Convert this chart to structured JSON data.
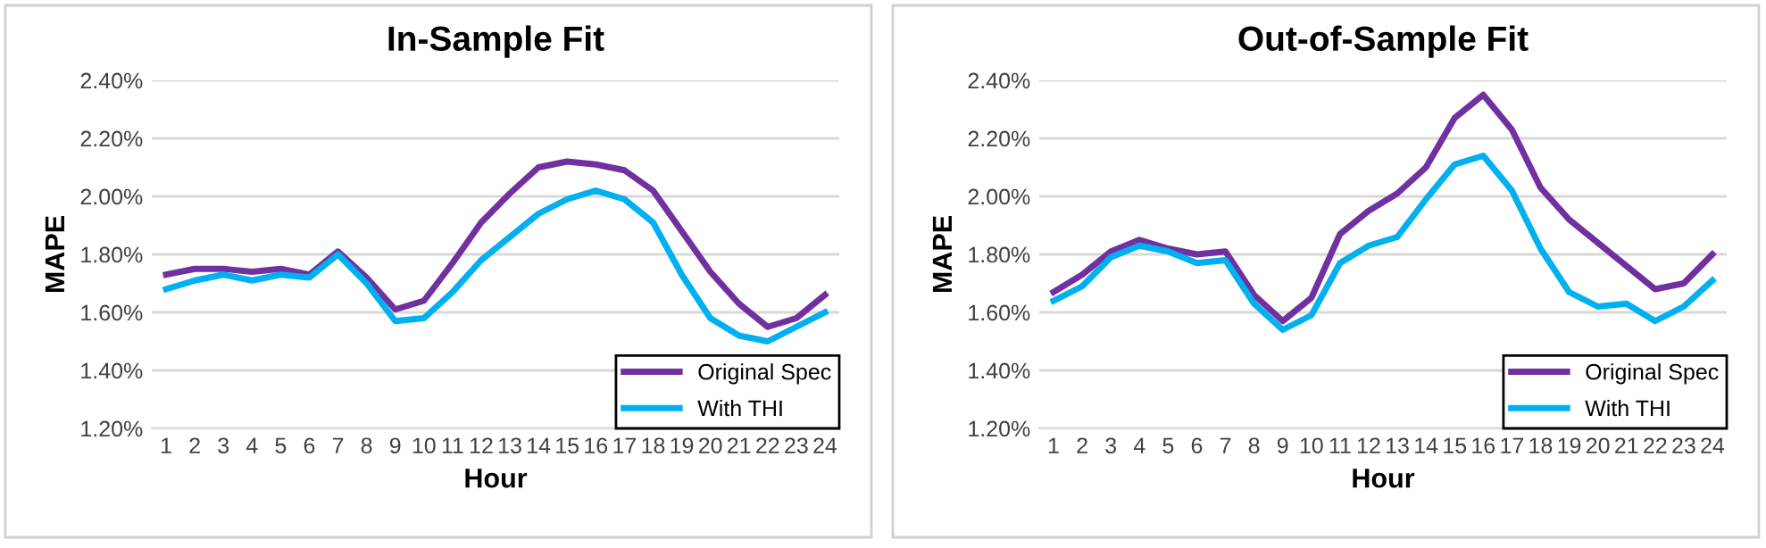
{
  "chart_data": [
    {
      "type": "line",
      "title": "In-Sample Fit",
      "xlabel": "Hour",
      "ylabel": "MAPE",
      "categories": [
        "1",
        "2",
        "3",
        "4",
        "5",
        "6",
        "7",
        "8",
        "9",
        "10",
        "11",
        "12",
        "13",
        "14",
        "15",
        "16",
        "17",
        "18",
        "19",
        "20",
        "21",
        "22",
        "23",
        "24"
      ],
      "series": [
        {
          "name": "Original Spec",
          "color": "#7030a0",
          "values": [
            1.73,
            1.75,
            1.75,
            1.74,
            1.75,
            1.73,
            1.81,
            1.72,
            1.61,
            1.64,
            1.77,
            1.91,
            2.01,
            2.1,
            2.12,
            2.11,
            2.09,
            2.02,
            1.88,
            1.74,
            1.63,
            1.55,
            1.58,
            1.66
          ]
        },
        {
          "name": "With THI",
          "color": "#00b0f0",
          "values": [
            1.68,
            1.71,
            1.73,
            1.71,
            1.73,
            1.72,
            1.8,
            1.7,
            1.57,
            1.58,
            1.67,
            1.78,
            1.86,
            1.94,
            1.99,
            2.02,
            1.99,
            1.91,
            1.73,
            1.58,
            1.52,
            1.5,
            1.55,
            1.6
          ]
        }
      ],
      "ylim": [
        1.2,
        2.4
      ],
      "yticks": [
        {
          "value": 1.2,
          "label": "1.20%"
        },
        {
          "value": 1.4,
          "label": "1.40%"
        },
        {
          "value": 1.6,
          "label": "1.60%"
        },
        {
          "value": 1.8,
          "label": "1.80%"
        },
        {
          "value": 2.0,
          "label": "2.00%"
        },
        {
          "value": 2.2,
          "label": "2.20%"
        },
        {
          "value": 2.4,
          "label": "2.40%"
        }
      ],
      "grid": "y",
      "legend": "bottom right",
      "line_style": "solid"
    },
    {
      "type": "line",
      "title": "Out-of-Sample Fit",
      "xlabel": "Hour",
      "ylabel": "MAPE",
      "categories": [
        "1",
        "2",
        "3",
        "4",
        "5",
        "6",
        "7",
        "8",
        "9",
        "10",
        "11",
        "12",
        "13",
        "14",
        "15",
        "16",
        "17",
        "18",
        "19",
        "20",
        "21",
        "22",
        "23",
        "24"
      ],
      "series": [
        {
          "name": "Original Spec",
          "color": "#7030a0",
          "values": [
            1.67,
            1.73,
            1.81,
            1.85,
            1.82,
            1.8,
            1.81,
            1.66,
            1.57,
            1.65,
            1.87,
            1.95,
            2.01,
            2.1,
            2.27,
            2.35,
            2.23,
            2.03,
            1.92,
            1.84,
            1.76,
            1.68,
            1.7,
            1.8
          ]
        },
        {
          "name": "With THI",
          "color": "#00b0f0",
          "values": [
            1.64,
            1.69,
            1.79,
            1.83,
            1.81,
            1.77,
            1.78,
            1.63,
            1.54,
            1.59,
            1.77,
            1.83,
            1.86,
            1.99,
            2.11,
            2.14,
            2.02,
            1.82,
            1.67,
            1.62,
            1.63,
            1.57,
            1.62,
            1.71
          ]
        }
      ],
      "ylim": [
        1.2,
        2.4
      ],
      "yticks": [
        {
          "value": 1.2,
          "label": "1.20%"
        },
        {
          "value": 1.4,
          "label": "1.40%"
        },
        {
          "value": 1.6,
          "label": "1.60%"
        },
        {
          "value": 1.8,
          "label": "1.80%"
        },
        {
          "value": 2.0,
          "label": "2.00%"
        },
        {
          "value": 2.2,
          "label": "2.20%"
        },
        {
          "value": 2.4,
          "label": "2.40%"
        }
      ],
      "grid": "y",
      "legend": "bottom right",
      "line_style": "solid"
    }
  ]
}
